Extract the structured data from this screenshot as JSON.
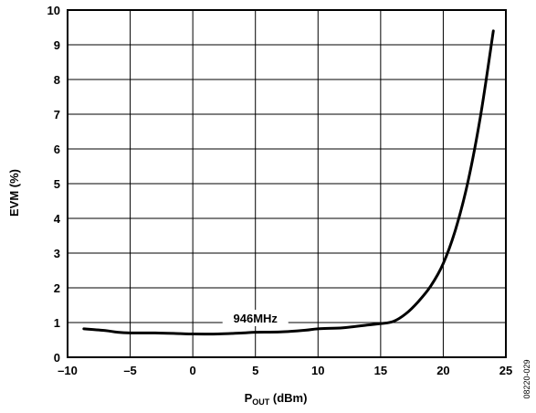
{
  "chart_data": {
    "type": "line",
    "xlabel": {
      "main": "P",
      "sub": "OUT",
      "rest": " (dBm)"
    },
    "ylabel": "EVM (%)",
    "xlim": [
      -10,
      25
    ],
    "ylim": [
      0,
      10
    ],
    "xticks": [
      -10,
      -5,
      0,
      5,
      10,
      15,
      20,
      25
    ],
    "yticks": [
      0,
      1,
      2,
      3,
      4,
      5,
      6,
      7,
      8,
      9,
      10
    ],
    "x_tick_labels": [
      "–10",
      "–5",
      "0",
      "5",
      "10",
      "15",
      "20",
      "25"
    ],
    "grid": true,
    "annotation": {
      "text": "946MHz",
      "x": 5,
      "y": 1.0
    },
    "figure_id": "08220-029",
    "series": [
      {
        "color": "#000000",
        "x": [
          -8.7,
          -7,
          -6,
          -5,
          -3,
          -1,
          0,
          2,
          4,
          5,
          7,
          9,
          10,
          12,
          14,
          15,
          16,
          17,
          18,
          19,
          20,
          21,
          22,
          23,
          24
        ],
        "y": [
          0.82,
          0.77,
          0.72,
          0.7,
          0.7,
          0.68,
          0.67,
          0.67,
          0.7,
          0.72,
          0.73,
          0.78,
          0.82,
          0.85,
          0.93,
          0.97,
          1.03,
          1.25,
          1.6,
          2.05,
          2.7,
          3.7,
          5.1,
          7.0,
          9.4
        ]
      }
    ]
  }
}
